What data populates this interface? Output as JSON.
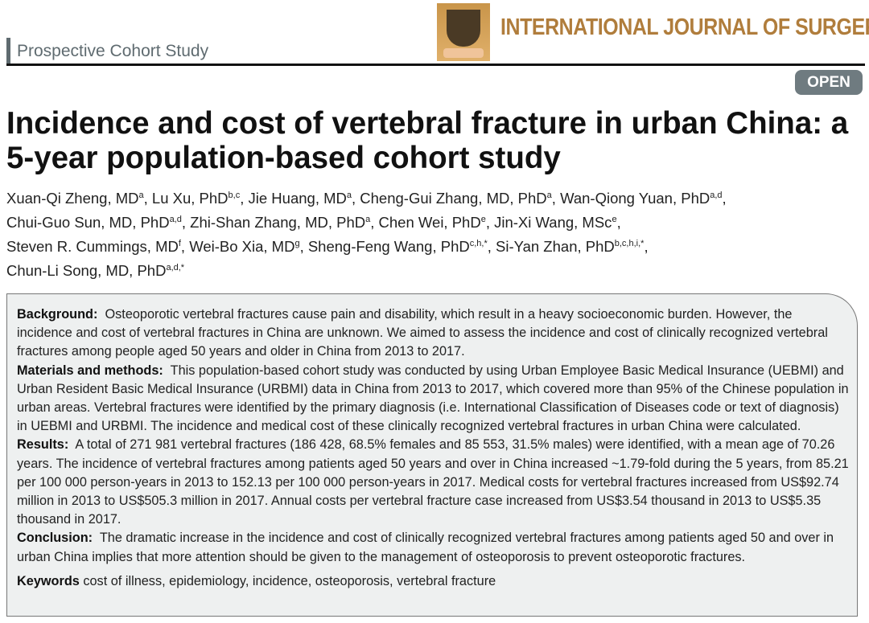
{
  "header": {
    "section": "Prospective Cohort Study",
    "journal": "INTERNATIONAL JOURNAL OF SURGERY",
    "open_badge": "OPEN"
  },
  "title": "Incidence and cost of vertebral fracture in urban China: a 5-year population-based cohort study",
  "authors": [
    {
      "name": "Xuan-Qi Zheng, MD",
      "sup": "a",
      "sep": ", "
    },
    {
      "name": "Lu Xu, PhD",
      "sup": "b,c",
      "sep": ", "
    },
    {
      "name": "Jie Huang, MD",
      "sup": "a",
      "sep": ", "
    },
    {
      "name": "Cheng-Gui Zhang, MD, PhD",
      "sup": "a",
      "sep": ", "
    },
    {
      "name": "Wan-Qiong Yuan, PhD",
      "sup": "a,d",
      "sep": ", "
    },
    {
      "name": "Chui-Guo Sun, MD, PhD",
      "sup": "a,d",
      "sep": ", "
    },
    {
      "name": "Zhi-Shan Zhang, MD, PhD",
      "sup": "a",
      "sep": ", "
    },
    {
      "name": "Chen Wei, PhD",
      "sup": "e",
      "sep": ", "
    },
    {
      "name": "Jin-Xi Wang, MSc",
      "sup": "e",
      "sep": ", "
    },
    {
      "name": "Steven R. Cummings, MD",
      "sup": "f",
      "sep": ", "
    },
    {
      "name": "Wei-Bo Xia, MD",
      "sup": "g",
      "sep": ", "
    },
    {
      "name": "Sheng-Feng Wang, PhD",
      "sup": "c,h,*",
      "sep": ", "
    },
    {
      "name": "Si-Yan Zhan, PhD",
      "sup": "b,c,h,i,*",
      "sep": ", "
    },
    {
      "name": "Chun-Li Song, MD, PhD",
      "sup": "a,d,*",
      "sep": ""
    }
  ],
  "abstract": {
    "background_label": "Background:",
    "background": "Osteoporotic vertebral fractures cause pain and disability, which result in a heavy socioeconomic burden. However, the incidence and cost of vertebral fractures in China are unknown. We aimed to assess the incidence and cost of clinically recognized vertebral fractures among people aged 50 years and older in China from 2013 to 2017.",
    "methods_label": "Materials and methods:",
    "methods": "This population-based cohort study was conducted by using Urban Employee Basic Medical Insurance (UEBMI) and Urban Resident Basic Medical Insurance (URBMI) data in China from 2013 to 2017, which covered more than 95% of the Chinese population in urban areas. Vertebral fractures were identified by the primary diagnosis (i.e. International Classification of Diseases code or text of diagnosis) in UEBMI and URBMI. The incidence and medical cost of these clinically recognized vertebral fractures in urban China were calculated.",
    "results_label": "Results:",
    "results": "A total of 271 981 vertebral fractures (186 428, 68.5% females and 85 553, 31.5% males) were identified, with a mean age of 70.26 years. The incidence of vertebral fractures among patients aged 50 years and over in China increased ~1.79-fold during the 5 years, from 85.21 per 100 000 person-years in 2013 to 152.13 per 100 000 person-years in 2017. Medical costs for vertebral fractures increased from US$92.74 million in 2013 to US$505.3 million in 2017. Annual costs per vertebral fracture case increased from US$3.54 thousand in 2013 to US$5.35 thousand in 2017.",
    "conclusion_label": "Conclusion:",
    "conclusion": "The dramatic increase in the incidence and cost of clinically recognized vertebral fractures among patients aged 50 and over in urban China implies that more attention should be given to the management of osteoporosis to prevent osteoporotic fractures.",
    "keywords_label": "Keywords",
    "keywords": "cost of illness, epidemiology, incidence, osteoporosis, vertebral fracture"
  }
}
